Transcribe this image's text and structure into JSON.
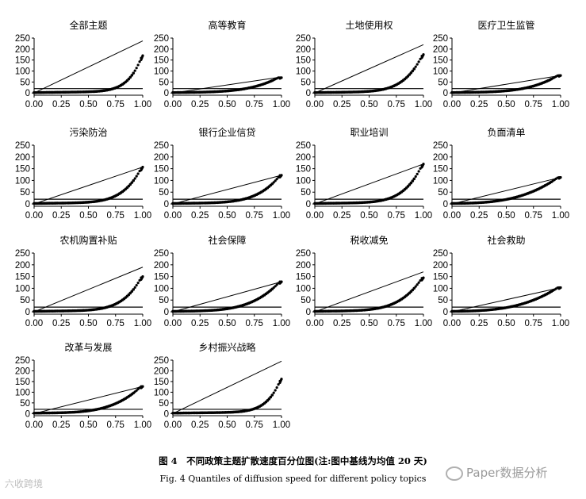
{
  "figure": {
    "caption_cn": "图 4　不同政策主题扩散速度百分位图(注:图中基线为均值 20 天)",
    "caption_en": "Fig. 4 Quantiles of diffusion speed for different policy topics"
  },
  "watermarks": {
    "right": "Paper数据分析",
    "left": "六收跨境"
  },
  "chart_data": [
    {
      "type": "scatter",
      "title": "全部主题",
      "xlim": [
        0,
        1
      ],
      "ylim": [
        -10,
        250
      ],
      "xticks": [
        "0.00",
        "0.25",
        "0.50",
        "0.75",
        "1.00"
      ],
      "yticks": [
        "0",
        "50",
        "100",
        "150",
        "200",
        "250"
      ],
      "baseline": 20,
      "line": {
        "x": [
          0,
          1
        ],
        "y": [
          0,
          237
        ]
      },
      "max": 170,
      "pow": 8
    },
    {
      "type": "scatter",
      "title": "高等教育",
      "xlim": [
        0,
        1
      ],
      "ylim": [
        -10,
        250
      ],
      "xticks": [
        "0.00",
        "0.25",
        "0.50",
        "0.75",
        "1.00"
      ],
      "yticks": [
        "0",
        "50",
        "100",
        "150",
        "200",
        "250"
      ],
      "baseline": 20,
      "line": {
        "x": [
          0,
          1
        ],
        "y": [
          0,
          73
        ]
      },
      "max": 70,
      "pow": 4
    },
    {
      "type": "scatter",
      "title": "土地使用权",
      "xlim": [
        0,
        1
      ],
      "ylim": [
        -10,
        250
      ],
      "xticks": [
        "0.00",
        "0.25",
        "0.50",
        "0.75",
        "1.00"
      ],
      "yticks": [
        "0",
        "50",
        "100",
        "150",
        "200",
        "250"
      ],
      "baseline": 20,
      "line": {
        "x": [
          0,
          1
        ],
        "y": [
          0,
          220
        ]
      },
      "max": 175,
      "pow": 6
    },
    {
      "type": "scatter",
      "title": "医疗卫生监管",
      "xlim": [
        0,
        1
      ],
      "ylim": [
        -10,
        250
      ],
      "xticks": [
        "0.00",
        "0.25",
        "0.50",
        "0.75",
        "1.00"
      ],
      "yticks": [
        "0",
        "50",
        "100",
        "150",
        "200",
        "250"
      ],
      "baseline": 20,
      "line": {
        "x": [
          0,
          1
        ],
        "y": [
          0,
          80
        ]
      },
      "max": 80,
      "pow": 4
    },
    {
      "type": "scatter",
      "title": "污染防治",
      "xlim": [
        0,
        1
      ],
      "ylim": [
        -10,
        250
      ],
      "xticks": [
        "0.00",
        "0.25",
        "0.50",
        "0.75",
        "1.00"
      ],
      "yticks": [
        "0",
        "50",
        "100",
        "150",
        "200",
        "250"
      ],
      "baseline": 20,
      "line": {
        "x": [
          0,
          1
        ],
        "y": [
          0,
          157
        ]
      },
      "max": 157,
      "pow": 6
    },
    {
      "type": "scatter",
      "title": "银行企业信贷",
      "xlim": [
        0,
        1
      ],
      "ylim": [
        -10,
        250
      ],
      "xticks": [
        "0.00",
        "0.25",
        "0.50",
        "0.75",
        "1.00"
      ],
      "yticks": [
        "0",
        "50",
        "100",
        "150",
        "200",
        "250"
      ],
      "baseline": 20,
      "line": {
        "x": [
          0,
          1
        ],
        "y": [
          0,
          122
        ]
      },
      "max": 122,
      "pow": 5
    },
    {
      "type": "scatter",
      "title": "职业培训",
      "xlim": [
        0,
        1
      ],
      "ylim": [
        -10,
        250
      ],
      "xticks": [
        "0.00",
        "0.25",
        "0.50",
        "0.75",
        "1.00"
      ],
      "yticks": [
        "0",
        "50",
        "100",
        "150",
        "200",
        "250"
      ],
      "baseline": 20,
      "line": {
        "x": [
          0,
          1
        ],
        "y": [
          0,
          170
        ]
      },
      "max": 170,
      "pow": 6
    },
    {
      "type": "scatter",
      "title": "负面清单",
      "xlim": [
        0,
        1
      ],
      "ylim": [
        -10,
        250
      ],
      "xticks": [
        "0.00",
        "0.25",
        "0.50",
        "0.75",
        "1.00"
      ],
      "yticks": [
        "0",
        "50",
        "100",
        "150",
        "200",
        "250"
      ],
      "baseline": 20,
      "line": {
        "x": [
          0,
          1
        ],
        "y": [
          0,
          113
        ]
      },
      "max": 113,
      "pow": 3
    },
    {
      "type": "scatter",
      "title": "农机购置补贴",
      "xlim": [
        0,
        1
      ],
      "ylim": [
        -10,
        250
      ],
      "xticks": [
        "0.00",
        "0.25",
        "0.50",
        "0.75",
        "1.00"
      ],
      "yticks": [
        "0",
        "50",
        "100",
        "150",
        "200",
        "250"
      ],
      "baseline": 20,
      "line": {
        "x": [
          0,
          1
        ],
        "y": [
          0,
          190
        ]
      },
      "max": 150,
      "pow": 6
    },
    {
      "type": "scatter",
      "title": "社会保障",
      "xlim": [
        0,
        1
      ],
      "ylim": [
        -10,
        250
      ],
      "xticks": [
        "0.00",
        "0.25",
        "0.50",
        "0.75",
        "1.00"
      ],
      "yticks": [
        "0",
        "50",
        "100",
        "150",
        "200",
        "250"
      ],
      "baseline": 20,
      "line": {
        "x": [
          0,
          1
        ],
        "y": [
          0,
          128
        ]
      },
      "max": 128,
      "pow": 4
    },
    {
      "type": "scatter",
      "title": "税收减免",
      "xlim": [
        0,
        1
      ],
      "ylim": [
        -10,
        250
      ],
      "xticks": [
        "0.00",
        "0.25",
        "0.50",
        "0.75",
        "1.00"
      ],
      "yticks": [
        "0",
        "50",
        "100",
        "150",
        "200",
        "250"
      ],
      "baseline": 20,
      "line": {
        "x": [
          0,
          1
        ],
        "y": [
          0,
          170
        ]
      },
      "max": 145,
      "pow": 5
    },
    {
      "type": "scatter",
      "title": "社会救助",
      "xlim": [
        0,
        1
      ],
      "ylim": [
        -10,
        250
      ],
      "xticks": [
        "0.00",
        "0.25",
        "0.50",
        "0.75",
        "1.00"
      ],
      "yticks": [
        "0",
        "50",
        "100",
        "150",
        "200",
        "250"
      ],
      "baseline": 20,
      "line": {
        "x": [
          0,
          1
        ],
        "y": [
          0,
          103
        ]
      },
      "max": 103,
      "pow": 3
    },
    {
      "type": "scatter",
      "title": "改革与发展",
      "xlim": [
        0,
        1
      ],
      "ylim": [
        -10,
        250
      ],
      "xticks": [
        "0.00",
        "0.25",
        "0.50",
        "0.75",
        "1.00"
      ],
      "yticks": [
        "0",
        "50",
        "100",
        "150",
        "200",
        "250"
      ],
      "baseline": 20,
      "line": {
        "x": [
          0,
          1
        ],
        "y": [
          0,
          127
        ]
      },
      "max": 127,
      "pow": 4
    },
    {
      "type": "scatter",
      "title": "乡村振兴战略",
      "xlim": [
        0,
        1
      ],
      "ylim": [
        -10,
        250
      ],
      "xticks": [
        "0.00",
        "0.25",
        "0.50",
        "0.75",
        "1.00"
      ],
      "yticks": [
        "0",
        "50",
        "100",
        "150",
        "200",
        "250"
      ],
      "baseline": 20,
      "line": {
        "x": [
          0,
          1
        ],
        "y": [
          0,
          245
        ]
      },
      "max": 162,
      "pow": 8
    }
  ]
}
